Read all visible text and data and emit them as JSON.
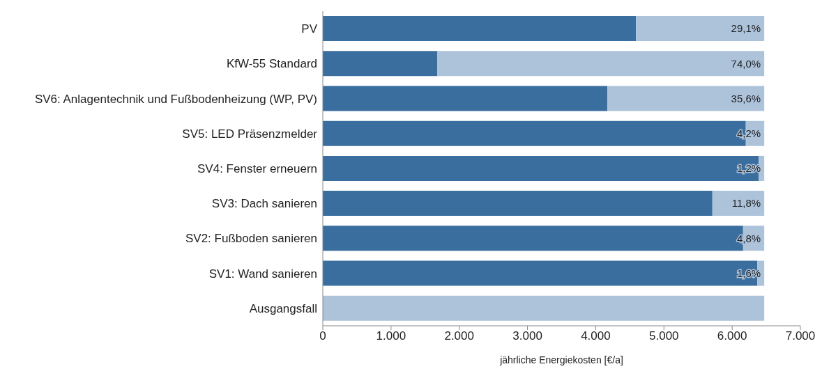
{
  "chart_data": {
    "type": "bar",
    "orientation": "horizontal",
    "stacked": true,
    "xlabel": "jährliche Energiekosten [€/a]",
    "categories": [
      "PV",
      "KfW-55 Standard",
      "SV6: Anlagentechnik und Fußbodenheizung (WP, PV)",
      "SV5: LED Präsenzmelder",
      "SV4: Fenster erneuern",
      "SV3: Dach sanieren",
      "SV2: Fußboden sanieren",
      "SV1: Wand sanieren",
      "Ausgangsfall"
    ],
    "series": [
      {
        "color": "#3a6e9f",
        "values": [
          4590,
          1680,
          4170,
          6200,
          6390,
          5710,
          6160,
          6370,
          0
        ]
      },
      {
        "color": "#adc3da",
        "values": [
          1880,
          4790,
          2300,
          270,
          80,
          760,
          310,
          100,
          6470
        ]
      }
    ],
    "annotations": [
      {
        "text": "29,1%",
        "y": "PV"
      },
      {
        "text": "74,0%",
        "y": "KfW-55 Standard"
      },
      {
        "text": "35,6%",
        "y": "SV6: Anlagentechnik und Fußbodenheizung (WP, PV)"
      },
      {
        "text": "4,2%",
        "y": "SV5: LED Präsenzmelder"
      },
      {
        "text": "1,2%",
        "y": "SV4: Fenster erneuern"
      },
      {
        "text": "11,8%",
        "y": "SV3: Dach sanieren"
      },
      {
        "text": "4,8%",
        "y": "SV2: Fußboden sanieren"
      },
      {
        "text": "1,6%",
        "y": "SV1: Wand sanieren"
      }
    ],
    "xlim": [
      0,
      7000
    ],
    "xticks": [
      0,
      {
        "value": 1000,
        "label": "1.000"
      },
      {
        "value": 2000,
        "label": "2.000"
      },
      {
        "value": 3000,
        "label": "3.000"
      },
      {
        "value": 4000,
        "label": "4.000"
      },
      {
        "value": 5000,
        "label": "5.000"
      },
      {
        "value": 6000,
        "label": "6.000"
      },
      {
        "value": 7000,
        "label": "7.000"
      }
    ],
    "grid": false,
    "legend": false
  }
}
